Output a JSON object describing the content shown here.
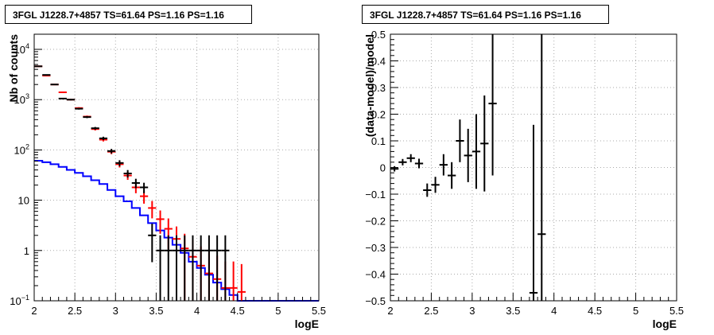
{
  "panels": {
    "left": {
      "title": "3FGL J1228.7+4857 TS=61.64 PS=1.16 PS=1.16"
    },
    "right": {
      "title": "3FGL J1228.7+4857 TS=61.64 PS=1.16 PS=1.16"
    }
  },
  "colors": {
    "data": "#000000",
    "model": "#ff0000",
    "background_model": "#0000ff"
  },
  "chart_data": [
    {
      "type": "line",
      "title": "3FGL J1228.7+4857 TS=61.64 PS=1.16 PS=1.16",
      "xlabel": "logE",
      "ylabel": "Nb of counts",
      "xlim": [
        2,
        5.5
      ],
      "ylim": [
        0.1,
        20000
      ],
      "yscale": "log",
      "grid": true,
      "x_ticks": [
        "2",
        "2.5",
        "3",
        "3.5",
        "4",
        "4.5",
        "5",
        "5.5"
      ],
      "y_ticks": [
        "10^{-1}",
        "1",
        "10",
        "10^{2}",
        "10^{3}",
        "10^{4}"
      ],
      "bin_edges": [
        2.0,
        2.1,
        2.2,
        2.3,
        2.4,
        2.5,
        2.6,
        2.7,
        2.8,
        2.9,
        3.0,
        3.1,
        3.2,
        3.3,
        3.4,
        3.5,
        3.6,
        3.7,
        3.8,
        3.9,
        4.0,
        4.1,
        4.2,
        4.3,
        4.4,
        4.5,
        4.6,
        4.7,
        4.8,
        4.9,
        5.0,
        5.1,
        5.2,
        5.3,
        5.4,
        5.5
      ],
      "series": [
        {
          "style": "points with error bars",
          "x": [
            2.05,
            2.15,
            2.25,
            2.35,
            2.45,
            2.55,
            2.65,
            2.75,
            2.85,
            2.95,
            3.05,
            3.15,
            3.25,
            3.35,
            3.45,
            3.55,
            3.65,
            3.75,
            3.85,
            3.95,
            4.05,
            4.15,
            4.25,
            4.35
          ],
          "y": [
            4600,
            3100,
            2000,
            1050,
            1000,
            660,
            450,
            270,
            170,
            95,
            55,
            34,
            22,
            18,
            2,
            1,
            1,
            1,
            1,
            1,
            1,
            1,
            1,
            1
          ]
        },
        {
          "style": "points with error bars",
          "x": [
            2.05,
            2.15,
            2.25,
            2.35,
            2.45,
            2.55,
            2.65,
            2.75,
            2.85,
            2.95,
            3.05,
            3.15,
            3.25,
            3.35,
            3.45,
            3.55,
            3.65,
            3.75,
            3.85,
            3.95,
            4.05,
            4.15,
            4.25,
            4.35,
            4.45,
            4.55
          ],
          "y": [
            4600,
            3000,
            2000,
            1400,
            1000,
            680,
            460,
            260,
            160,
            92,
            52,
            31,
            18,
            12,
            7,
            4.2,
            2.7,
            1.7,
            1.1,
            0.75,
            0.5,
            0.35,
            0.27,
            0.18,
            0.18,
            0.15
          ]
        },
        {
          "style": "step",
          "y": [
            61,
            57,
            52,
            46,
            40,
            35,
            30,
            25,
            21,
            16,
            12,
            9.5,
            7.0,
            5.0,
            3.5,
            2.5,
            1.8,
            1.3,
            0.9,
            0.6,
            0.45,
            0.33,
            0.23,
            0.17,
            0.13,
            0.1,
            0.1,
            0.1,
            0.1,
            0.1,
            0.1,
            0.1,
            0.1,
            0.1,
            0.1
          ]
        }
      ]
    },
    {
      "type": "scatter",
      "title": "3FGL J1228.7+4857 TS=61.64 PS=1.16 PS=1.16",
      "xlabel": "logE",
      "ylabel": "(data-model)/model",
      "xlim": [
        2,
        5.5
      ],
      "ylim": [
        -0.5,
        0.5
      ],
      "grid": true,
      "x_ticks": [
        "2",
        "2.5",
        "3",
        "3.5",
        "4",
        "4.5",
        "5",
        "5.5"
      ],
      "y_ticks": [
        "-0.5",
        "-0.4",
        "-0.3",
        "-0.2",
        "-0.1",
        "0",
        "0.1",
        "0.2",
        "0.3",
        "0.4",
        "0.5"
      ],
      "series": [
        {
          "style": "points with error bars",
          "x": [
            2.05,
            2.15,
            2.25,
            2.35,
            2.45,
            2.55,
            2.65,
            2.75,
            2.85,
            2.95,
            3.05,
            3.15,
            3.25,
            3.75,
            3.85
          ],
          "y": [
            -0.005,
            0.02,
            0.035,
            0.015,
            -0.085,
            -0.065,
            0.01,
            -0.03,
            0.1,
            0.045,
            0.06,
            0.09,
            0.24,
            -0.47,
            -0.25
          ],
          "y_err": [
            0.01,
            0.012,
            0.015,
            0.018,
            0.025,
            0.03,
            0.04,
            0.05,
            0.08,
            0.1,
            0.14,
            0.18,
            0.27,
            0.63,
            0.75
          ]
        }
      ]
    }
  ]
}
